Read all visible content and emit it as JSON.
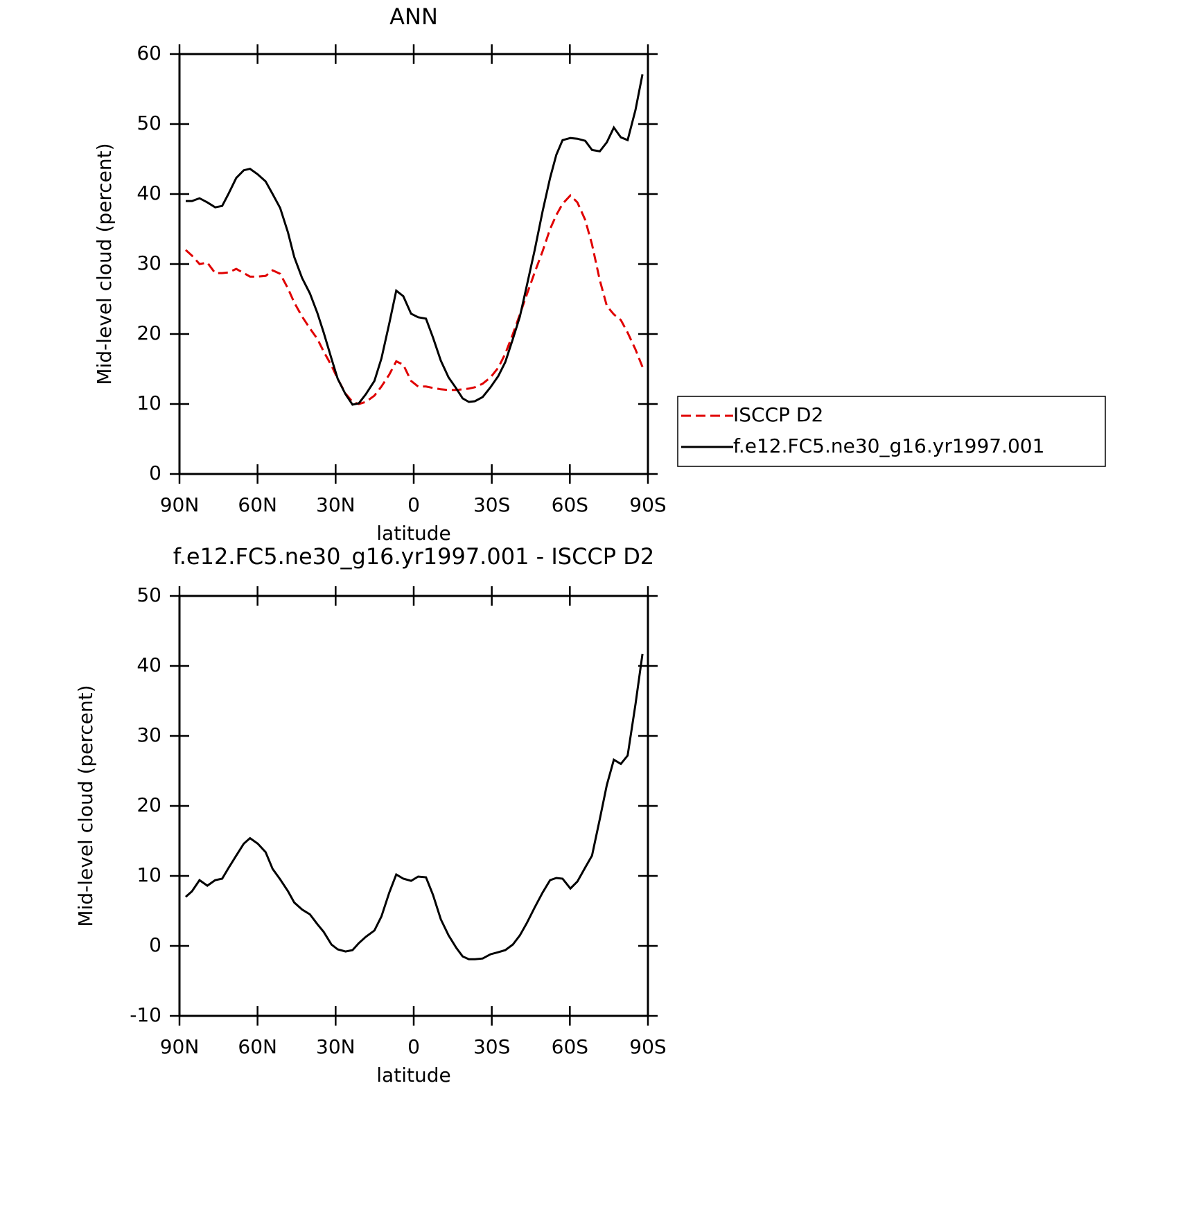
{
  "chart_data": [
    {
      "type": "line",
      "title": "ANN",
      "xlabel": "latitude",
      "ylabel": "Mid-level cloud (percent)",
      "x": [
        87.6,
        85.2,
        82.3,
        79.3,
        76.3,
        73.6,
        71.2,
        68.2,
        65.3,
        62.9,
        59.9,
        56.9,
        54.2,
        51.3,
        48.3,
        45.9,
        42.9,
        39.9,
        37.0,
        34.6,
        31.6,
        29.2,
        26.2,
        23.5,
        21.1,
        18.4,
        15.1,
        12.4,
        9.4,
        6.7,
        4.0,
        1.0,
        -1.7,
        -4.7,
        -7.4,
        -10.4,
        -13.4,
        -16.4,
        -18.8,
        -21.2,
        -23.5,
        -26.5,
        -29.5,
        -32.5,
        -35.2,
        -38.1,
        -40.8,
        -43.5,
        -46.5,
        -49.5,
        -52.4,
        -54.8,
        -57.2,
        -60.2,
        -62.9,
        -65.9,
        -68.5,
        -71.5,
        -74.2,
        -76.9,
        -79.6,
        -82.2,
        -85.2,
        -87.9
      ],
      "series": [
        {
          "name": "ISCCP D2",
          "color": "#e00000",
          "dashed": true,
          "values": [
            32,
            31.2,
            30,
            30.2,
            28.7,
            28.7,
            28.8,
            29.3,
            28.7,
            28.2,
            28.2,
            28.3,
            29.1,
            28.6,
            26.5,
            24.5,
            22.5,
            20.8,
            19.3,
            17.5,
            15.5,
            13.6,
            11.5,
            10.3,
            10,
            10.3,
            11.2,
            12.5,
            14.2,
            16.1,
            15.6,
            13.3,
            12.5,
            12.5,
            12.3,
            12.1,
            12,
            12,
            12.1,
            12.2,
            12.4,
            12.9,
            13.8,
            15.2,
            17.2,
            20,
            22.8,
            25.7,
            28.8,
            31.8,
            35,
            37,
            38.6,
            39.8,
            38.8,
            36.3,
            32.8,
            27.7,
            24,
            22.8,
            22,
            20.2,
            17.8,
            15.3
          ]
        },
        {
          "name": "f.e12.FC5.ne30_g16.yr1997.001",
          "color": "#000000",
          "dashed": false,
          "values": [
            39,
            39,
            39.4,
            38.8,
            38.1,
            38.3,
            40,
            42.3,
            43.4,
            43.6,
            42.8,
            41.8,
            40,
            38,
            34.5,
            31,
            28,
            25.8,
            23,
            20.2,
            16.5,
            13.6,
            11.4,
            9.9,
            10.1,
            11.4,
            13.3,
            16.5,
            21.5,
            26.2,
            25.4,
            22.9,
            22.4,
            22.2,
            19.5,
            16.2,
            13.8,
            12.2,
            10.8,
            10.3,
            10.4,
            11,
            12.4,
            14,
            16,
            19.3,
            22.5,
            27,
            32,
            37.5,
            42.3,
            45.6,
            47.7,
            48,
            47.9,
            47.6,
            46.3,
            46.1,
            47.4,
            49.5,
            48.1,
            47.7,
            52,
            57.1
          ]
        }
      ],
      "xlim": [
        90,
        -90
      ],
      "xticks": [
        {
          "value": 90,
          "label": "90N"
        },
        {
          "value": 60,
          "label": "60N"
        },
        {
          "value": 30,
          "label": "30N"
        },
        0,
        {
          "value": -30,
          "label": "30S"
        },
        {
          "value": -60,
          "label": "60S"
        },
        {
          "value": -90,
          "label": "90S"
        }
      ],
      "ylim": [
        0,
        60
      ],
      "yticks": [
        0,
        10,
        20,
        30,
        40,
        50,
        60
      ],
      "legend": "right"
    },
    {
      "type": "line",
      "title": "f.e12.FC5.ne30_g16.yr1997.001 - ISCCP D2",
      "xlabel": "latitude",
      "ylabel": "Mid-level cloud (percent)",
      "x": [
        87.6,
        85.2,
        82.3,
        79.3,
        76.3,
        73.6,
        71.2,
        68.2,
        65.3,
        62.9,
        59.9,
        56.9,
        54.2,
        51.3,
        48.3,
        45.9,
        42.9,
        39.9,
        37.0,
        34.6,
        31.6,
        29.2,
        26.2,
        23.5,
        21.1,
        18.4,
        15.1,
        12.4,
        9.4,
        6.7,
        4.0,
        1.0,
        -1.7,
        -4.7,
        -7.4,
        -10.4,
        -13.4,
        -16.4,
        -18.8,
        -21.2,
        -23.5,
        -26.5,
        -29.5,
        -32.5,
        -35.2,
        -38.1,
        -40.8,
        -43.5,
        -46.5,
        -49.5,
        -52.4,
        -54.8,
        -57.2,
        -60.2,
        -62.9,
        -65.9,
        -68.5,
        -71.5,
        -74.2,
        -76.9,
        -79.6,
        -82.2,
        -85.2,
        -87.9
      ],
      "color": "#000000",
      "values": [
        7,
        7.8,
        9.4,
        8.6,
        9.4,
        9.6,
        11.1,
        12.9,
        14.6,
        15.4,
        14.6,
        13.4,
        11,
        9.5,
        7.8,
        6.2,
        5.2,
        4.5,
        3.1,
        2,
        0.2,
        -0.5,
        -0.8,
        -0.6,
        0.4,
        1.3,
        2.2,
        4.2,
        7.6,
        10.2,
        9.6,
        9.3,
        9.9,
        9.8,
        7.3,
        3.8,
        1.5,
        -0.3,
        -1.5,
        -1.9,
        -1.9,
        -1.8,
        -1.2,
        -0.9,
        -0.6,
        0.2,
        1.5,
        3.3,
        5.5,
        7.6,
        9.4,
        9.7,
        9.6,
        8.2,
        9.2,
        11.2,
        12.9,
        18.1,
        23,
        26.6,
        26,
        27.2,
        34.5,
        41.7
      ],
      "xlim": [
        90,
        -90
      ],
      "xticks": [
        {
          "value": 90,
          "label": "90N"
        },
        {
          "value": 60,
          "label": "60N"
        },
        {
          "value": 30,
          "label": "30N"
        },
        0,
        {
          "value": -30,
          "label": "30S"
        },
        {
          "value": -60,
          "label": "60S"
        },
        {
          "value": -90,
          "label": "90S"
        }
      ],
      "ylim": [
        -10,
        50
      ],
      "yticks": [
        -10,
        0,
        10,
        20,
        30,
        40,
        50
      ]
    }
  ]
}
